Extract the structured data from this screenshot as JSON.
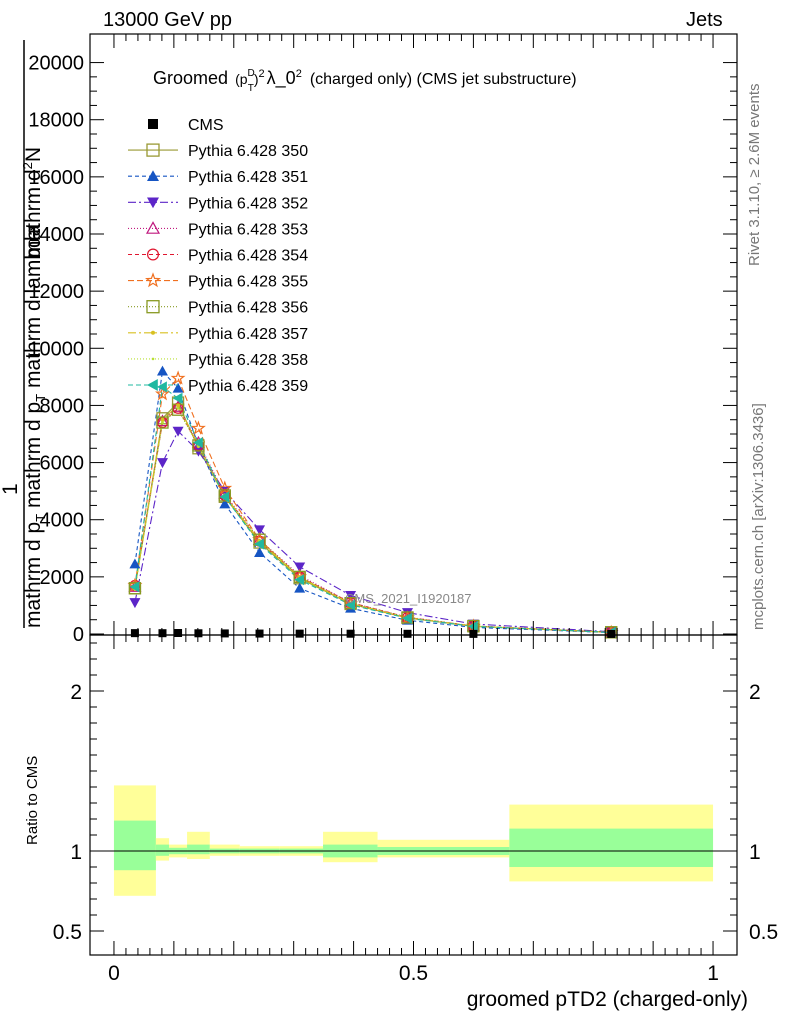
{
  "header": {
    "left": "13000 GeV pp",
    "right": "Jets"
  },
  "side_labels": {
    "rivet": "Rivet 3.1.10, ≥ 2.6M events",
    "mcplots": "mcplots.cern.ch [arXiv:1306.3436]"
  },
  "watermark": "CMS_2021_I1920187",
  "title": {
    "prefix": "Groomed",
    "p": "(p",
    "sup_D": "D",
    "sub_T": "T",
    "close": ")",
    "sup_2": "2",
    "mid": "λ_0",
    "sup_2b": "2",
    "suffix": "(charged only) (CMS jet substructure)"
  },
  "ylabel_main": {
    "top_line": "mathrm d",
    "top_sup": "2",
    "top_N": "N",
    "bot_line": "mathrm d p",
    "bot_sub": "T",
    "bot_rest": " mathrm d p",
    "bot_sub2": "T",
    "bot_tail": " mathrm d lambda",
    "num": "1",
    "den": "mathrm d N / mathrm d p",
    "den_sub": "T",
    "den_tail": " mathrm d lambda"
  },
  "ylabel_ratio": "Ratio to CMS",
  "xlabel": "groomed pTD2 (charged-only)",
  "colors": {
    "cms": "#000000",
    "band_green": "#99ff99",
    "band_yellow": "#ffff99"
  },
  "chart_data": [
    {
      "type": "line",
      "panel": "main",
      "xlim": [
        -0.04,
        1.04
      ],
      "ylim": [
        0,
        21000
      ],
      "yticks": [
        0,
        2000,
        4000,
        6000,
        8000,
        10000,
        12000,
        14000,
        16000,
        18000,
        20000
      ],
      "ytick_labels": [
        "0",
        "2000",
        "4000",
        "6000",
        "8000",
        "10000",
        "12000",
        "14000",
        "16000",
        "18000",
        "20000"
      ],
      "x": [
        0.035,
        0.081,
        0.107,
        0.141,
        0.185,
        0.243,
        0.31,
        0.395,
        0.49,
        0.6,
        0.83
      ],
      "series": [
        {
          "name": "CMS",
          "color": "#000000",
          "marker": "square-filled",
          "dash": "none",
          "values": [
            30,
            28,
            35,
            25,
            20,
            15,
            12,
            10,
            7,
            4,
            2
          ]
        },
        {
          "name": "Pythia 6.428 350",
          "color": "#999933",
          "marker": "square-open",
          "dash": "solid",
          "values": [
            1600,
            7550,
            8100,
            6500,
            4800,
            3200,
            1950,
            1050,
            560,
            270,
            60
          ]
        },
        {
          "name": "Pythia 6.428 351",
          "color": "#1655c3",
          "marker": "triangle-up-filled",
          "dash": "4,3",
          "values": [
            2450,
            9200,
            8600,
            6600,
            4550,
            2850,
            1600,
            900,
            480,
            230,
            50
          ]
        },
        {
          "name": "Pythia 6.428 352",
          "color": "#5c25c8",
          "marker": "triangle-down-filled",
          "dash": "8,3,2,3",
          "values": [
            1100,
            6000,
            7100,
            6400,
            5000,
            3650,
            2350,
            1350,
            750,
            350,
            80
          ]
        },
        {
          "name": "Pythia 6.428 353",
          "color": "#c0187f",
          "marker": "triangle-up-open",
          "dash": "1,2",
          "values": [
            1650,
            7450,
            7950,
            6700,
            4900,
            3300,
            2050,
            1100,
            590,
            280,
            60
          ]
        },
        {
          "name": "Pythia 6.428 354",
          "color": "#e0162f",
          "marker": "circle-open",
          "dash": "4,3",
          "values": [
            1700,
            7400,
            7900,
            6600,
            4850,
            3250,
            2000,
            1100,
            580,
            280,
            60
          ]
        },
        {
          "name": "Pythia 6.428 355",
          "color": "#f07020",
          "marker": "star-open",
          "dash": "6,3",
          "values": [
            1700,
            8400,
            8950,
            7200,
            5100,
            3300,
            2000,
            1050,
            560,
            270,
            55
          ]
        },
        {
          "name": "Pythia 6.428 356",
          "color": "#889922",
          "marker": "square-open",
          "dash": "1,2",
          "values": [
            1600,
            7400,
            7850,
            6600,
            4850,
            3300,
            2000,
            1080,
            580,
            280,
            60
          ]
        },
        {
          "name": "Pythia 6.428 357",
          "color": "#d8c020",
          "marker": "dot",
          "dash": "8,3,2,3",
          "values": [
            1600,
            7500,
            8000,
            6600,
            4850,
            3250,
            1980,
            1070,
            570,
            275,
            58
          ]
        },
        {
          "name": "Pythia 6.428 358",
          "color": "#b8e030",
          "marker": "dot-small",
          "dash": "1,2",
          "values": [
            1550,
            7400,
            7900,
            6550,
            4800,
            3250,
            1980,
            1070,
            570,
            275,
            58
          ]
        },
        {
          "name": "Pythia 6.428 359",
          "color": "#20b8a0",
          "marker": "triangle-left-filled",
          "dash": "5,3",
          "values": [
            1650,
            8650,
            8250,
            6700,
            4800,
            3150,
            1900,
            1020,
            550,
            265,
            56
          ]
        }
      ]
    },
    {
      "type": "area",
      "panel": "ratio",
      "xlim": [
        -0.04,
        1.04
      ],
      "ylim": [
        0.35,
        2.35
      ],
      "yticks": [
        0.5,
        1,
        2
      ],
      "ytick_labels": [
        "0.5",
        "1",
        "2"
      ],
      "xticks": [
        0,
        0.5,
        1
      ],
      "xtick_labels": [
        "0",
        "0.5",
        "1"
      ],
      "bins": [
        {
          "lo": 0.0,
          "hi": 0.07,
          "green": [
            0.88,
            1.19
          ],
          "yellow": [
            0.72,
            1.41
          ]
        },
        {
          "lo": 0.07,
          "hi": 0.092,
          "green": [
            0.97,
            1.04
          ],
          "yellow": [
            0.94,
            1.08
          ]
        },
        {
          "lo": 0.092,
          "hi": 0.122,
          "green": [
            0.98,
            1.02
          ],
          "yellow": [
            0.96,
            1.04
          ]
        },
        {
          "lo": 0.122,
          "hi": 0.16,
          "green": [
            0.98,
            1.04
          ],
          "yellow": [
            0.95,
            1.12
          ]
        },
        {
          "lo": 0.16,
          "hi": 0.21,
          "green": [
            0.985,
            1.015
          ],
          "yellow": [
            0.97,
            1.04
          ]
        },
        {
          "lo": 0.21,
          "hi": 0.276,
          "green": [
            0.985,
            1.015
          ],
          "yellow": [
            0.97,
            1.03
          ]
        },
        {
          "lo": 0.276,
          "hi": 0.349,
          "green": [
            0.985,
            1.015
          ],
          "yellow": [
            0.97,
            1.03
          ]
        },
        {
          "lo": 0.349,
          "hi": 0.44,
          "green": [
            0.96,
            1.04
          ],
          "yellow": [
            0.93,
            1.12
          ]
        },
        {
          "lo": 0.44,
          "hi": 0.66,
          "green": [
            0.975,
            1.025
          ],
          "yellow": [
            0.96,
            1.07
          ]
        },
        {
          "lo": 0.66,
          "hi": 1.0,
          "green": [
            0.9,
            1.14
          ],
          "yellow": [
            0.81,
            1.29
          ]
        }
      ]
    }
  ]
}
